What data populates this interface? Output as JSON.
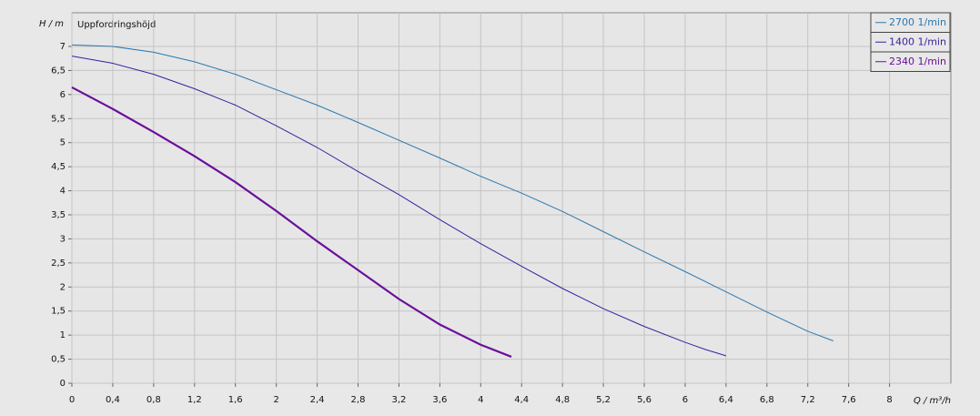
{
  "chart_data": {
    "type": "line",
    "y_label": "H / m",
    "x_label": "Q / m³/h",
    "annotation": "Uppfordringshöjd",
    "xlim": [
      0,
      8.6
    ],
    "ylim": [
      0,
      7.7
    ],
    "xticks": [
      0,
      {
        "value": 0.4,
        "label": "0,4"
      },
      {
        "value": 0.8,
        "label": "0,8"
      },
      {
        "value": 1.2,
        "label": "1,2"
      },
      {
        "value": 1.6,
        "label": "1,6"
      },
      2,
      {
        "value": 2.4,
        "label": "2,4"
      },
      {
        "value": 2.8,
        "label": "2,8"
      },
      {
        "value": 3.2,
        "label": "3,2"
      },
      {
        "value": 3.6,
        "label": "3,6"
      },
      4,
      {
        "value": 4.4,
        "label": "4,4"
      },
      {
        "value": 4.8,
        "label": "4,8"
      },
      {
        "value": 5.2,
        "label": "5,2"
      },
      {
        "value": 5.6,
        "label": "5,6"
      },
      6,
      {
        "value": 6.4,
        "label": "6,4"
      },
      {
        "value": 6.8,
        "label": "6,8"
      },
      {
        "value": 7.2,
        "label": "7,2"
      },
      {
        "value": 7.6,
        "label": "7,6"
      },
      8
    ],
    "yticks": [
      0,
      {
        "value": 0.5,
        "label": "0,5"
      },
      1,
      {
        "value": 1.5,
        "label": "1,5"
      },
      2,
      {
        "value": 2.5,
        "label": "2,5"
      },
      3,
      {
        "value": 3.5,
        "label": "3,5"
      },
      4,
      {
        "value": 4.5,
        "label": "4,5"
      },
      5,
      {
        "value": 5.5,
        "label": "5,5"
      },
      6,
      {
        "value": 6.5,
        "label": "6,5"
      },
      7
    ],
    "grid": true,
    "legend": "top-right",
    "series": [
      {
        "name": "2700 1/min",
        "color": "#2a78b0",
        "line_width": 1,
        "x": [
          0,
          0.4,
          0.8,
          1.2,
          1.6,
          2,
          2.4,
          2.8,
          3.2,
          3.6,
          4,
          4.4,
          4.8,
          5.2,
          5.6,
          6,
          6.4,
          6.8,
          7.2,
          7.45
        ],
        "values": [
          7.03,
          7.0,
          6.88,
          6.68,
          6.42,
          6.1,
          5.78,
          5.42,
          5.05,
          4.68,
          4.3,
          3.95,
          3.57,
          3.15,
          2.73,
          2.32,
          1.9,
          1.48,
          1.08,
          0.88
        ]
      },
      {
        "name": "1400 1/min",
        "color": "#3c1fa0",
        "line_width": 1,
        "x": [
          0,
          0.4,
          0.8,
          1.2,
          1.6,
          2,
          2.4,
          2.8,
          3.2,
          3.6,
          4,
          4.4,
          4.8,
          5.2,
          5.6,
          6,
          6.2,
          6.4
        ],
        "values": [
          6.8,
          6.65,
          6.42,
          6.12,
          5.78,
          5.35,
          4.9,
          4.4,
          3.92,
          3.4,
          2.9,
          2.43,
          1.97,
          1.55,
          1.18,
          0.85,
          0.7,
          0.57
        ]
      },
      {
        "name": "2340 1/min",
        "color": "#6a0f9c",
        "line_width": 2.2,
        "x": [
          0,
          0.4,
          0.8,
          1.2,
          1.6,
          2,
          2.4,
          2.8,
          3.2,
          3.6,
          4,
          4.3
        ],
        "values": [
          6.15,
          5.7,
          5.22,
          4.72,
          4.18,
          3.58,
          2.95,
          2.35,
          1.75,
          1.22,
          0.8,
          0.55
        ]
      }
    ]
  }
}
